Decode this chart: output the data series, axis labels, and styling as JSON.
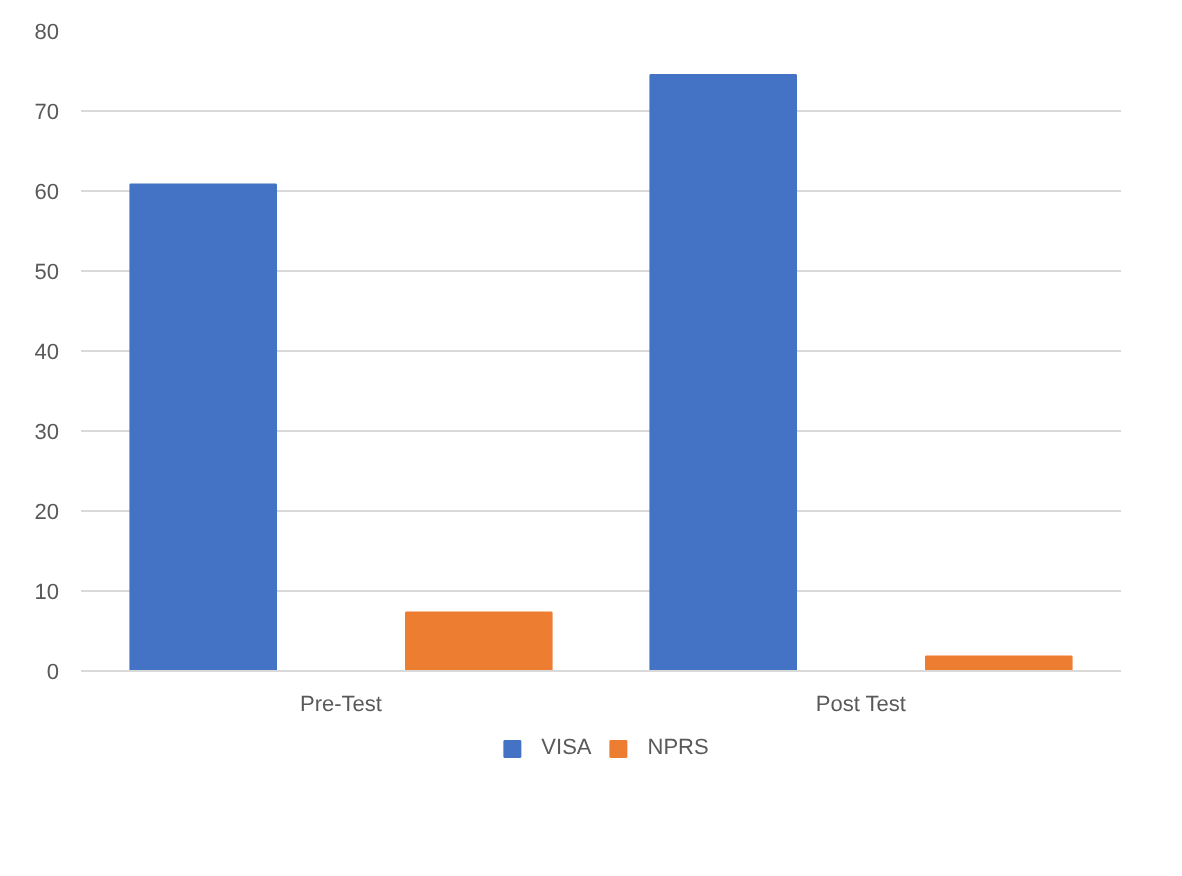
{
  "chart_data": {
    "type": "bar",
    "categories": [
      "Pre-Test",
      "Post Test"
    ],
    "series": [
      {
        "name": "VISA",
        "color": "#4472c4",
        "values": [
          60.8,
          74.5
        ]
      },
      {
        "name": "NPRS",
        "color": "#ed7d31",
        "values": [
          7.3,
          1.8
        ]
      }
    ],
    "ylim": [
      0,
      80
    ],
    "yticks": [
      0,
      10,
      20,
      30,
      40,
      50,
      60,
      70,
      80
    ],
    "grid": "y",
    "legend": "bottom"
  }
}
